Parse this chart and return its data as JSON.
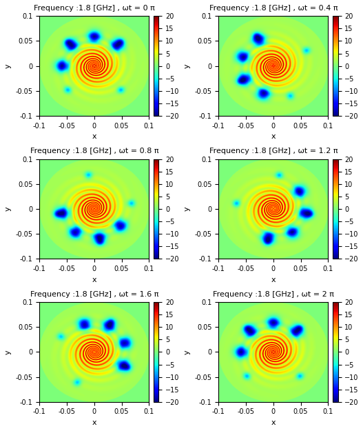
{
  "freq": 1.8,
  "freq_unit": "GHz",
  "xlim": [
    -0.1,
    0.1
  ],
  "ylim": [
    -0.1,
    0.1
  ],
  "clim": [
    -20,
    20
  ],
  "xticks": [
    -0.1,
    -0.05,
    0,
    0.05,
    0.1
  ],
  "yticks": [
    -0.1,
    -0.05,
    0,
    0.05,
    0.1
  ],
  "xtick_labels": [
    "-0.1",
    "-0.05",
    "0",
    "0.05",
    "0.1"
  ],
  "ytick_labels": [
    "-0.1",
    "-0.05",
    "0",
    "0.05",
    "0.1"
  ],
  "xlabel": "x",
  "ylabel": "y",
  "colorbar_ticks": [
    -20,
    -15,
    -10,
    -5,
    0,
    5,
    10,
    15,
    20
  ],
  "omega_t_values": [
    0,
    0.4,
    0.8,
    1.2,
    1.6,
    2.0
  ],
  "nrows": 3,
  "ncols": 2,
  "figsize": [
    5.27,
    6.25
  ],
  "dpi": 100,
  "grid_n": 300,
  "colormap": "jet",
  "title_fontsize": 8,
  "tick_fontsize": 7,
  "label_fontsize": 8
}
